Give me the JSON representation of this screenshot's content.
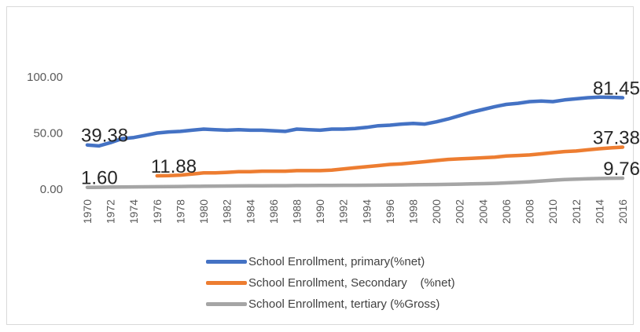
{
  "chart_data": {
    "type": "line",
    "title": "",
    "xlabel": "",
    "ylabel": "",
    "ylim": [
      0,
      100
    ],
    "yticks": [
      "0.00",
      "50.00",
      "100.00"
    ],
    "x": [
      1970,
      1971,
      1972,
      1973,
      1974,
      1975,
      1976,
      1977,
      1978,
      1979,
      1980,
      1981,
      1982,
      1983,
      1984,
      1985,
      1986,
      1987,
      1988,
      1989,
      1990,
      1991,
      1992,
      1993,
      1994,
      1995,
      1996,
      1997,
      1998,
      1999,
      2000,
      2001,
      2002,
      2003,
      2004,
      2005,
      2006,
      2007,
      2008,
      2009,
      2010,
      2011,
      2012,
      2013,
      2014,
      2015,
      2016
    ],
    "xtick_labels": [
      "1970",
      "1972",
      "1974",
      "1976",
      "1978",
      "1980",
      "1982",
      "1984",
      "1986",
      "1988",
      "1990",
      "1992",
      "1994",
      "1996",
      "1998",
      "2000",
      "2002",
      "2004",
      "2006",
      "2008",
      "2010",
      "2012",
      "2014",
      "2016"
    ],
    "grid": false,
    "legend_position": "bottom",
    "series": [
      {
        "name": "School Enrollment, primary(%net)",
        "color": "#4472c4",
        "values": [
          39.38,
          38.5,
          41.5,
          45,
          46,
          48,
          50,
          51,
          51.5,
          52.5,
          53.5,
          53,
          52.5,
          53,
          52.5,
          52.5,
          52,
          51.5,
          53.5,
          53,
          52.5,
          53.5,
          53.5,
          54,
          55,
          56.5,
          57,
          58,
          58.5,
          58,
          60,
          62.5,
          65.5,
          68.5,
          71,
          73.5,
          75.5,
          76.5,
          78,
          78.5,
          78,
          79.5,
          80.5,
          81.5,
          82,
          81.8,
          81.45
        ]
      },
      {
        "name": "School Enrollment, Secondary    (%net)",
        "color": "#ed7d31",
        "values": [
          null,
          null,
          null,
          null,
          null,
          null,
          11.88,
          12,
          12.5,
          13.5,
          14.5,
          14.5,
          15,
          15.5,
          15.5,
          16,
          16,
          16,
          16.5,
          16.5,
          16.5,
          17,
          18,
          19,
          20,
          21,
          22,
          22.5,
          23.5,
          24.5,
          25.5,
          26.5,
          27,
          27.5,
          28,
          28.5,
          29.5,
          30,
          30.5,
          31.5,
          32.5,
          33.5,
          34,
          35,
          36,
          36.8,
          37.38
        ]
      },
      {
        "name": "School Enrollment, tertiary (%Gross)",
        "color": "#a5a5a5",
        "values": [
          1.6,
          1.7,
          1.8,
          1.9,
          2.0,
          2.1,
          2.2,
          2.3,
          2.4,
          2.5,
          2.6,
          2.7,
          2.8,
          2.9,
          3.0,
          3.0,
          3.1,
          3.1,
          3.2,
          3.2,
          3.3,
          3.3,
          3.4,
          3.4,
          3.5,
          3.6,
          3.7,
          3.8,
          3.9,
          4.0,
          4.1,
          4.3,
          4.5,
          4.7,
          4.9,
          5.2,
          5.6,
          6.0,
          6.6,
          7.3,
          8.0,
          8.5,
          8.9,
          9.2,
          9.5,
          9.7,
          9.76
        ]
      }
    ],
    "data_labels": [
      {
        "series": 0,
        "x": 1970,
        "text": "39.38"
      },
      {
        "series": 0,
        "x": 2016,
        "text": "81.45"
      },
      {
        "series": 1,
        "x": 1976,
        "text": "11.88"
      },
      {
        "series": 1,
        "x": 2016,
        "text": "37.38"
      },
      {
        "series": 2,
        "x": 1970,
        "text": "1.60"
      },
      {
        "series": 2,
        "x": 2016,
        "text": "9.76"
      }
    ]
  },
  "legend": {
    "items": [
      {
        "label": "School Enrollment, primary(%net)",
        "color": "#4472c4"
      },
      {
        "label": "School Enrollment, Secondary    (%net)",
        "color": "#ed7d31"
      },
      {
        "label": "School Enrollment, tertiary (%Gross)",
        "color": "#a5a5a5"
      }
    ]
  }
}
